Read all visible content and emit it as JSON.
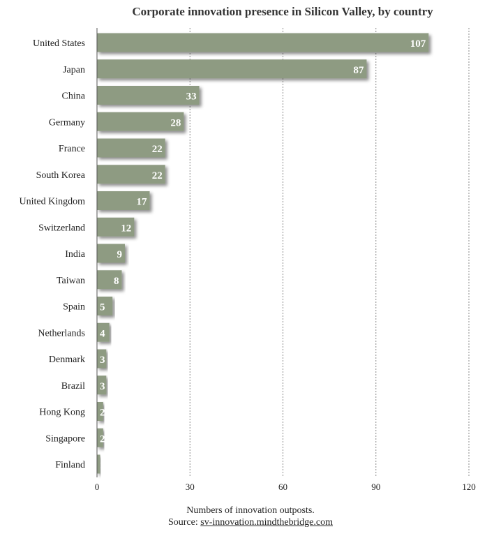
{
  "chart_data": {
    "type": "bar",
    "orientation": "horizontal",
    "title": "Corporate innovation presence in Silicon Valley, by country",
    "categories": [
      "United States",
      "Japan",
      "China",
      "Germany",
      "France",
      "South Korea",
      "United Kingdom",
      "Switzerland",
      "India",
      "Taiwan",
      "Spain",
      "Netherlands",
      "Denmark",
      "Brazil",
      "Hong Kong",
      "Singapore",
      "Finland"
    ],
    "values": [
      107,
      87,
      33,
      28,
      22,
      22,
      17,
      12,
      9,
      8,
      5,
      4,
      3,
      3,
      2,
      2,
      1
    ],
    "xlabel": "Numbers of innovation outposts.",
    "xlim": [
      0,
      120
    ],
    "xticks": [
      0,
      30,
      60,
      90,
      120
    ],
    "grid": "vertical dashed",
    "legend": "none",
    "bar_color": "#8e9b82"
  },
  "footer": {
    "source_prefix": "Source: ",
    "source_link": "sv-innovation.mindthebridge.com"
  }
}
